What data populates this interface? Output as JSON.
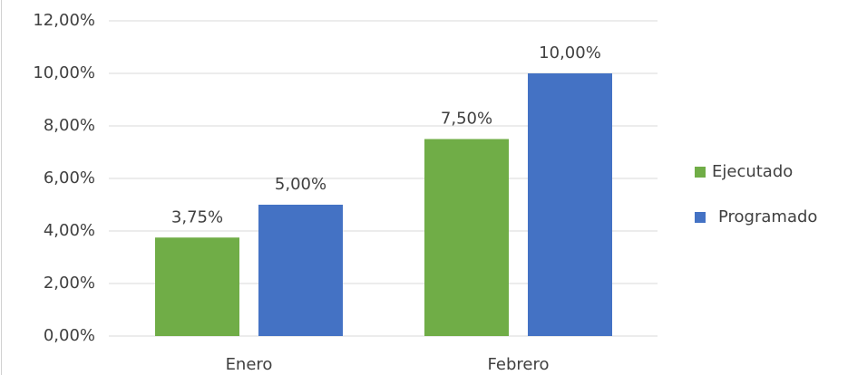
{
  "chart_data": {
    "type": "bar",
    "categories": [
      "Enero",
      "Febrero"
    ],
    "series": [
      {
        "name": "Ejecutado",
        "color": "#70ad47",
        "values": [
          3.75,
          7.5
        ],
        "value_labels": [
          "3,75%",
          "7,50%"
        ]
      },
      {
        "name": "Programado",
        "color": "#4472c4",
        "values": [
          5,
          10
        ],
        "value_labels": [
          "5,00%",
          "10,00%"
        ]
      }
    ],
    "ylim": [
      0,
      12
    ],
    "yticks": [
      {
        "value": 0,
        "label": "0,00%"
      },
      {
        "value": 2,
        "label": "2,00%"
      },
      {
        "value": 4,
        "label": "4,00%"
      },
      {
        "value": 6,
        "label": "6,00%"
      },
      {
        "value": 8,
        "label": "8,00%"
      },
      {
        "value": 10,
        "label": "10,00%"
      },
      {
        "value": 12,
        "label": "12,00%"
      }
    ],
    "grid": true,
    "legend": "right"
  }
}
